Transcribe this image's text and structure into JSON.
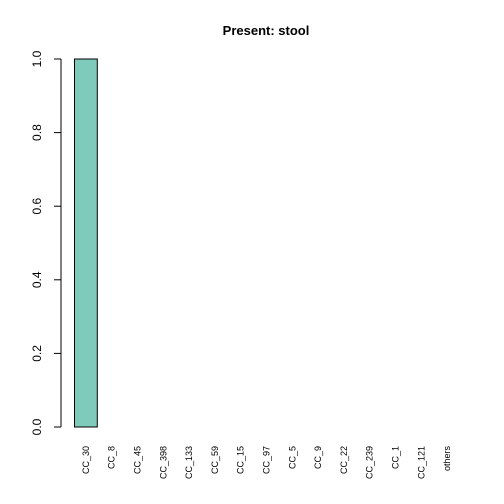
{
  "chart_data": {
    "type": "bar",
    "title": "Present:  stool",
    "xlabel": "",
    "ylabel": "",
    "categories": [
      "CC_30",
      "CC_8",
      "CC_45",
      "CC_398",
      "CC_133",
      "CC_59",
      "CC_15",
      "CC_97",
      "CC_5",
      "CC_9",
      "CC_22",
      "CC_239",
      "CC_1",
      "CC_121",
      "others"
    ],
    "values": [
      1.0,
      0,
      0,
      0,
      0,
      0,
      0,
      0,
      0,
      0,
      0,
      0,
      0,
      0,
      0
    ],
    "ylim": [
      0,
      1.0
    ],
    "yticks": [
      0.0,
      0.2,
      0.4,
      0.6,
      0.8,
      1.0
    ],
    "ytick_labels": [
      "0.0",
      "0.2",
      "0.4",
      "0.6",
      "0.8",
      "1.0"
    ],
    "grid": false,
    "legend": "none",
    "bar_color": "#7fcbbb"
  }
}
